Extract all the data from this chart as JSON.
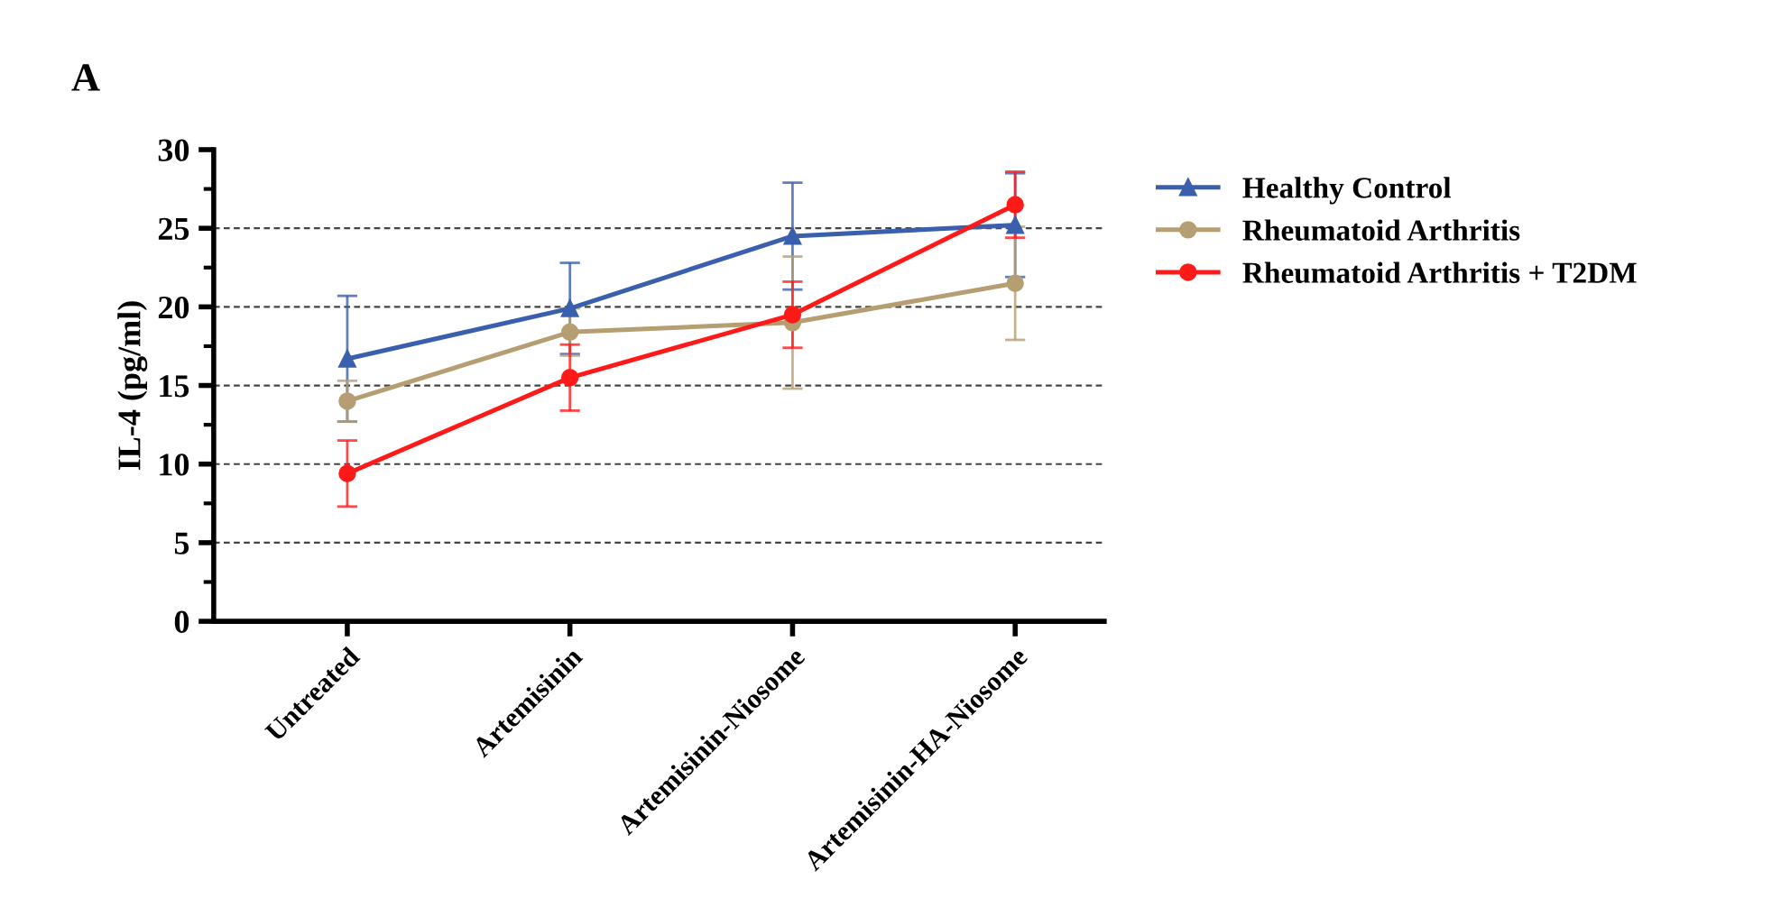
{
  "chart_data": {
    "type": "line",
    "title": "A",
    "ylabel": "IL-4 (pg/ml)",
    "categories": [
      "Untreated",
      "Artemisinin",
      "Artemisinin-Niosome",
      "Artemisinin-HA-Niosome"
    ],
    "series": [
      {
        "name": "Healthy Control",
        "color": "#3a5fad",
        "marker": "triangle",
        "values": [
          16.7,
          19.9,
          24.5,
          25.2
        ],
        "errors": [
          4,
          2.9,
          3.4,
          3.3
        ]
      },
      {
        "name": "Rheumatoid Arthritis",
        "color": "#b59f72",
        "marker": "circle",
        "values": [
          14.0,
          18.4,
          19.0,
          21.5
        ],
        "errors": [
          1.3,
          1.5,
          4.2,
          3.6
        ]
      },
      {
        "name": "Rheumatoid Arthritis + T2DM",
        "color": "#ff1a1a",
        "marker": "circle",
        "values": [
          9.4,
          15.5,
          19.5,
          26.5
        ],
        "errors": [
          2.1,
          2.1,
          2.1,
          2.1
        ]
      }
    ],
    "ylim": [
      0,
      30
    ],
    "yticks": [
      0,
      5,
      10,
      15,
      20,
      25,
      30
    ],
    "grid": "y",
    "legend": "top right",
    "line_style": "solid"
  }
}
